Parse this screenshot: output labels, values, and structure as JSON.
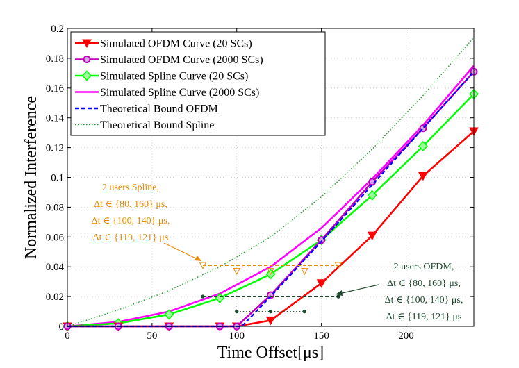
{
  "chart_data": {
    "type": "line",
    "title": "",
    "xlabel": "Time Offset[μs]",
    "ylabel": "Normalized Interference",
    "xlim": [
      0,
      240
    ],
    "ylim": [
      0,
      0.2
    ],
    "xticks": [
      0,
      50,
      100,
      150,
      200
    ],
    "yticks": [
      0,
      0.02,
      0.04,
      0.06,
      0.08,
      0.1,
      0.12,
      0.14,
      0.16,
      0.18,
      0.2
    ],
    "xtick_labels": [
      "0",
      "50",
      "100",
      "150",
      "200"
    ],
    "ytick_labels": [
      "0",
      "0.02",
      "0.04",
      "0.06",
      "0.08",
      "0.1",
      "0.12",
      "0.14",
      "0.16",
      "0.18",
      "0.2"
    ],
    "grid": true,
    "legend_position": "top-left",
    "series": [
      {
        "name": "Simulated OFDM Curve (20 SCs)",
        "color": "#ff0000",
        "marker": "triangle-down",
        "dash": "solid",
        "x": [
          0,
          30,
          60,
          90,
          100,
          120,
          150,
          180,
          210,
          240
        ],
        "y": [
          0,
          0,
          0,
          0,
          0,
          0.004,
          0.029,
          0.061,
          0.101,
          0.131
        ]
      },
      {
        "name": "Simulated OFDM Curve (2000 SCs)",
        "color": "#bf00bf",
        "marker": "circle",
        "dash": "solid",
        "x": [
          0,
          30,
          60,
          90,
          100,
          120,
          150,
          180,
          210,
          240
        ],
        "y": [
          0,
          0,
          0,
          0,
          0,
          0.021,
          0.058,
          0.097,
          0.133,
          0.171
        ]
      },
      {
        "name": "Simulated Spline Curve (20 SCs)",
        "color": "#00ff00",
        "marker": "diamond",
        "dash": "solid",
        "x": [
          0,
          30,
          60,
          90,
          120,
          150,
          180,
          210,
          240
        ],
        "y": [
          0,
          0.002,
          0.008,
          0.019,
          0.035,
          0.058,
          0.088,
          0.121,
          0.156
        ]
      },
      {
        "name": "Simulated Spline Curve (2000 SCs)",
        "color": "#ff00ff",
        "marker": "none",
        "dash": "solid",
        "x": [
          0,
          30,
          60,
          90,
          120,
          150,
          180,
          210,
          240
        ],
        "y": [
          0,
          0.003,
          0.01,
          0.022,
          0.04,
          0.066,
          0.099,
          0.135,
          0.175
        ]
      },
      {
        "name": "Theoretical Bound OFDM",
        "color": "#0000ff",
        "marker": "none",
        "dash": "dashed",
        "x": [
          0,
          103,
          120,
          150,
          180,
          210,
          240
        ],
        "y": [
          0,
          0,
          0.02,
          0.057,
          0.095,
          0.133,
          0.171
        ]
      },
      {
        "name": "Theoretical Bound Spline",
        "color": "#1fa02f",
        "marker": "none",
        "dash": "dotted",
        "x": [
          0,
          30,
          60,
          90,
          120,
          150,
          180,
          210,
          240
        ],
        "y": [
          0,
          0.011,
          0.024,
          0.04,
          0.06,
          0.087,
          0.119,
          0.155,
          0.194
        ]
      }
    ],
    "annotation_series": [
      {
        "name": "2 users Spline",
        "color": "#e88a00",
        "marker": "triangle-down",
        "dash": "dashed",
        "points": [
          [
            80,
            0.041
          ],
          [
            100,
            0.037
          ],
          [
            120,
            0.037
          ],
          [
            140,
            0.037
          ],
          [
            160,
            0.041
          ]
        ],
        "line_y": 0.041,
        "line_x": [
          80,
          160
        ]
      },
      {
        "name": "2 users OFDM",
        "color": "#1e4a2e",
        "marker": "circle",
        "dash": "dashed",
        "points": [
          [
            80,
            0.02
          ],
          [
            100,
            0.01
          ],
          [
            120,
            0.01
          ],
          [
            140,
            0.01
          ],
          [
            160,
            0.02
          ]
        ],
        "line_y": 0.02,
        "line_x": [
          80,
          160
        ],
        "sub_line_y": 0.01,
        "sub_line_x": [
          100,
          140
        ]
      }
    ],
    "annotations": [
      {
        "id": "spline",
        "color": "#e88a00",
        "lines": [
          "2 users Spline,",
          "Δt ∈ {80, 160} μs,",
          "Δt ∈ {100, 140} μs,",
          "Δt ∈ {119, 121} μs"
        ]
      },
      {
        "id": "ofdm",
        "color": "#1e4a2e",
        "lines": [
          "2 users OFDM,",
          "Δt ∈ {80, 160} μs,",
          "Δt ∈ {100, 140} μs,",
          "Δt ∈ {119, 121} μs"
        ]
      }
    ]
  }
}
